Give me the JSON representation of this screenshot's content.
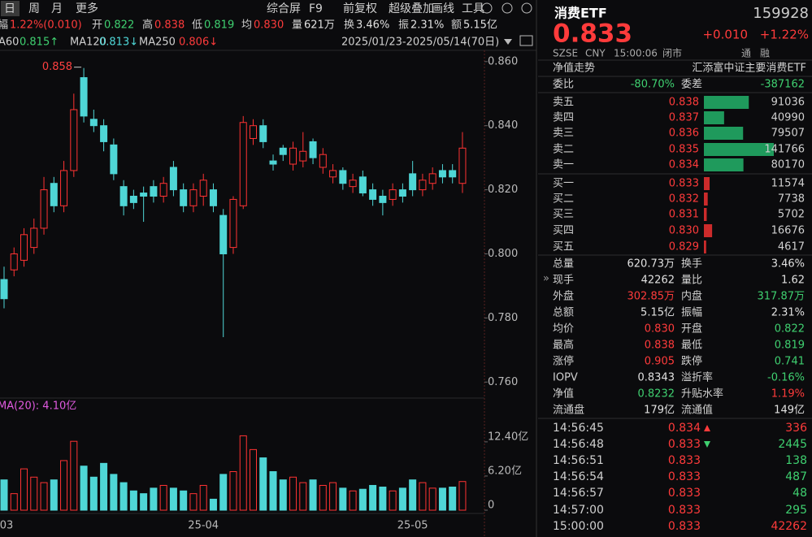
{
  "toolbar": {
    "periods": [
      "日",
      "周",
      "月",
      "更多"
    ],
    "tools": [
      "综合屏",
      "F9",
      "前复权",
      "超级叠加",
      "画线",
      "工具"
    ]
  },
  "quote_bar": [
    {
      "label": "幅",
      "value": "1.22%(0.010)",
      "tone": "up"
    },
    {
      "label": "开",
      "value": "0.822",
      "tone": "down"
    },
    {
      "label": "高",
      "value": "0.838",
      "tone": "up"
    },
    {
      "label": "低",
      "value": "0.819",
      "tone": "down"
    },
    {
      "label": "均",
      "value": "0.830",
      "tone": "up"
    },
    {
      "label": "量",
      "value": "621万",
      "tone": "flat"
    },
    {
      "label": "换",
      "value": "3.46%",
      "tone": "flat"
    },
    {
      "label": "振",
      "value": "2.31%",
      "tone": "flat"
    },
    {
      "label": "额",
      "value": "5.15亿",
      "tone": "flat"
    }
  ],
  "ma_legend": [
    {
      "label": "A60",
      "value": "0.815↑",
      "tone": "down"
    },
    {
      "label": "MA120",
      "value": "0.813↓",
      "tone": "cyan"
    },
    {
      "label": "MA250",
      "value": "0.806↓",
      "tone": "up"
    }
  ],
  "date_range": "2025/01/23-2025/05/14(70日)",
  "chart_data": [
    {
      "type": "candlestick",
      "up_color": "#ff3333",
      "down_color": "#4fd6d6",
      "max_label": "0.858",
      "categories": [
        "03",
        null,
        null,
        null,
        null,
        null,
        null,
        null,
        null,
        null,
        null,
        null,
        null,
        null,
        null,
        null,
        null,
        null,
        null,
        null,
        "25-04",
        null,
        null,
        null,
        null,
        null,
        null,
        null,
        null,
        null,
        null,
        null,
        null,
        null,
        null,
        null,
        null,
        null,
        null,
        null,
        null,
        "25-05",
        null,
        null,
        null,
        null,
        null
      ],
      "open": [
        0.792,
        0.795,
        0.798,
        0.802,
        0.808,
        0.822,
        0.815,
        0.826,
        0.855,
        0.842,
        0.84,
        0.834,
        0.821,
        0.818,
        0.819,
        0.821,
        0.818,
        0.827,
        0.82,
        0.815,
        0.818,
        0.82,
        0.812,
        0.802,
        0.815,
        0.836,
        0.84,
        0.829,
        0.833,
        0.828,
        0.829,
        0.835,
        0.827,
        0.824,
        0.826,
        0.821,
        0.824,
        0.82,
        0.818,
        0.817,
        0.82,
        0.825,
        0.82,
        0.822,
        0.826,
        0.826,
        0.822
      ],
      "close": [
        0.786,
        0.8,
        0.806,
        0.808,
        0.82,
        0.815,
        0.826,
        0.845,
        0.843,
        0.84,
        0.835,
        0.825,
        0.815,
        0.816,
        0.818,
        0.818,
        0.822,
        0.82,
        0.815,
        0.82,
        0.823,
        0.815,
        0.8,
        0.817,
        0.841,
        0.84,
        0.835,
        0.828,
        0.831,
        0.833,
        0.832,
        0.83,
        0.831,
        0.826,
        0.822,
        0.823,
        0.819,
        0.817,
        0.816,
        0.82,
        0.818,
        0.82,
        0.823,
        0.825,
        0.824,
        0.824,
        0.833
      ],
      "high": [
        0.796,
        0.802,
        0.808,
        0.811,
        0.824,
        0.824,
        0.829,
        0.85,
        0.858,
        0.845,
        0.842,
        0.836,
        0.823,
        0.82,
        0.821,
        0.823,
        0.824,
        0.829,
        0.822,
        0.822,
        0.825,
        0.822,
        0.814,
        0.818,
        0.843,
        0.842,
        0.842,
        0.831,
        0.834,
        0.835,
        0.838,
        0.836,
        0.833,
        0.828,
        0.827,
        0.825,
        0.826,
        0.822,
        0.82,
        0.822,
        0.822,
        0.829,
        0.825,
        0.827,
        0.828,
        0.828,
        0.838
      ],
      "low": [
        0.783,
        0.793,
        0.796,
        0.8,
        0.806,
        0.813,
        0.813,
        0.824,
        0.841,
        0.838,
        0.832,
        0.823,
        0.812,
        0.814,
        0.81,
        0.816,
        0.816,
        0.818,
        0.813,
        0.813,
        0.815,
        0.813,
        0.774,
        0.8,
        0.814,
        0.834,
        0.833,
        0.826,
        0.829,
        0.826,
        0.827,
        0.828,
        0.825,
        0.822,
        0.82,
        0.819,
        0.818,
        0.815,
        0.812,
        0.815,
        0.816,
        0.818,
        0.818,
        0.82,
        0.822,
        0.822,
        0.819
      ],
      "ylim": [
        0.755,
        0.8635
      ],
      "yticks": [
        {
          "value": 0.86,
          "label": "0.860"
        },
        {
          "value": 0.84,
          "label": "0.840"
        },
        {
          "value": 0.82,
          "label": "0.820"
        },
        {
          "value": 0.8,
          "label": "0.800"
        },
        {
          "value": 0.78,
          "label": "0.780"
        },
        {
          "value": 0.76,
          "label": "0.760"
        }
      ]
    },
    {
      "type": "bar",
      "subtitle": "MA(20): 4.10亿",
      "values": [
        5.5,
        3.0,
        7.5,
        6.0,
        5.0,
        5.5,
        9.0,
        12.5,
        8.0,
        6.0,
        8.5,
        6.5,
        5.0,
        3.5,
        3.0,
        4.0,
        4.5,
        4.0,
        3.5,
        3.0,
        4.5,
        2.0,
        6.5,
        7.0,
        13.5,
        11.0,
        9.5,
        7.0,
        5.5,
        6.0,
        5.0,
        5.5,
        4.5,
        5.0,
        4.0,
        3.5,
        3.8,
        4.5,
        4.2,
        3.5,
        4.0,
        5.5,
        5.0,
        4.0,
        4.0,
        4.2,
        5.2
      ],
      "ylim": [
        0,
        17.1
      ],
      "yticks": [
        {
          "value": 12.4,
          "label": "12.40亿"
        },
        {
          "value": 6.2,
          "label": "6.20亿"
        },
        0
      ]
    }
  ],
  "quote": {
    "name": "消费ETF",
    "code": "159928",
    "price": "0.833",
    "change": "+0.010",
    "change_pct": "+1.22%",
    "status": [
      "SZSE",
      "CNY",
      "15:00:06",
      "闭市"
    ],
    "badges": [
      "通",
      "融"
    ]
  },
  "nav_row": {
    "label": "净值走势",
    "fund": "汇添富中证主要消费ETF"
  },
  "ratio": [
    {
      "label": "委比",
      "value": "-80.70%"
    },
    {
      "label": "委差",
      "value": "-387162"
    }
  ],
  "order_book": {
    "asks": [
      {
        "label": "卖五",
        "price": "0.838",
        "volume": 91036
      },
      {
        "label": "卖四",
        "price": "0.837",
        "volume": 40990
      },
      {
        "label": "卖三",
        "price": "0.836",
        "volume": 79507
      },
      {
        "label": "卖二",
        "price": "0.835",
        "volume": 141766
      },
      {
        "label": "卖一",
        "price": "0.834",
        "volume": 80170
      }
    ],
    "bids": [
      {
        "label": "买一",
        "price": "0.833",
        "volume": 11574
      },
      {
        "label": "买二",
        "price": "0.832",
        "volume": 7738
      },
      {
        "label": "买三",
        "price": "0.831",
        "volume": 5702
      },
      {
        "label": "买四",
        "price": "0.830",
        "volume": 16676
      },
      {
        "label": "买五",
        "price": "0.829",
        "volume": 4617
      }
    ]
  },
  "stats": [
    [
      {
        "label": "总量",
        "value": "620.73万",
        "tone": "flat"
      },
      {
        "label": "换手",
        "value": "3.46%",
        "tone": "flat"
      }
    ],
    [
      {
        "label": "现手",
        "value": "42262",
        "tone": "flat"
      },
      {
        "label": "量比",
        "value": "1.62",
        "tone": "flat"
      }
    ],
    [
      {
        "label": "外盘",
        "value": "302.85万",
        "tone": "up"
      },
      {
        "label": "内盘",
        "value": "317.87万",
        "tone": "down"
      }
    ],
    [
      {
        "label": "总额",
        "value": "5.15亿",
        "tone": "flat"
      },
      {
        "label": "振幅",
        "value": "2.31%",
        "tone": "flat"
      }
    ],
    [
      {
        "label": "均价",
        "value": "0.830",
        "tone": "up"
      },
      {
        "label": "开盘",
        "value": "0.822",
        "tone": "down"
      }
    ],
    [
      {
        "label": "最高",
        "value": "0.838",
        "tone": "up"
      },
      {
        "label": "最低",
        "value": "0.819",
        "tone": "down"
      }
    ],
    [
      {
        "label": "涨停",
        "value": "0.905",
        "tone": "up"
      },
      {
        "label": "跌停",
        "value": "0.741",
        "tone": "down"
      }
    ],
    [
      {
        "label": "IOPV",
        "value": "0.8343",
        "tone": "flat"
      },
      {
        "label": "溢折率",
        "value": "-0.16%",
        "tone": "down"
      }
    ],
    [
      {
        "label": "净值",
        "value": "0.8232",
        "tone": "down"
      },
      {
        "label": "升贴水率",
        "value": "1.19%",
        "tone": "up"
      }
    ],
    [
      {
        "label": "流通盘",
        "value": "179亿",
        "tone": "flat"
      },
      {
        "label": "流通值",
        "value": "149亿",
        "tone": "flat"
      }
    ]
  ],
  "ticks": [
    {
      "time": "14:56:45",
      "price": "0.834",
      "dir": "up",
      "volume": "336",
      "tone": "up"
    },
    {
      "time": "14:56:48",
      "price": "0.833",
      "dir": "down",
      "volume": "2445",
      "tone": "down"
    },
    {
      "time": "14:56:51",
      "price": "0.833",
      "volume": "138",
      "tone": "down"
    },
    {
      "time": "14:56:54",
      "price": "0.833",
      "volume": "487",
      "tone": "down"
    },
    {
      "time": "14:56:57",
      "price": "0.833",
      "volume": "48",
      "tone": "down"
    },
    {
      "time": "14:57:00",
      "price": "0.833",
      "volume": "295",
      "tone": "down"
    },
    {
      "time": "15:00:00",
      "price": "0.833",
      "volume": "42262",
      "tone": "up"
    }
  ]
}
